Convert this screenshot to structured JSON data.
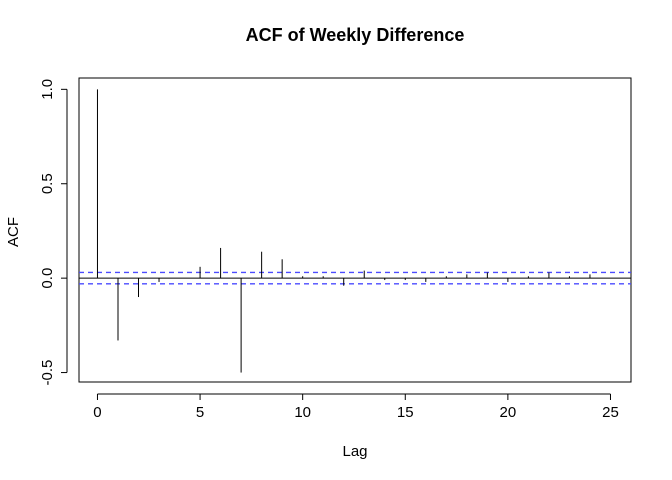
{
  "chart_data": {
    "type": "bar",
    "subtype": "acf-stem",
    "title": "ACF of Weekly Difference",
    "xlabel": "Lag",
    "ylabel": "ACF",
    "xlim": [
      -0.9,
      26.0
    ],
    "ylim": [
      -0.55,
      1.06
    ],
    "xticks": [
      0,
      5,
      10,
      15,
      20,
      25
    ],
    "yticks": [
      -0.5,
      0.0,
      0.5,
      1.0
    ],
    "xtick_labels": [
      "0",
      "5",
      "10",
      "15",
      "20",
      "25"
    ],
    "ytick_labels": [
      "-0.5",
      "0.0",
      "0.5",
      "1.0"
    ],
    "grid": false,
    "legend": "none",
    "confidence_bound": 0.03,
    "lags": [
      0,
      1,
      2,
      3,
      4,
      5,
      6,
      7,
      8,
      9,
      10,
      11,
      12,
      13,
      14,
      15,
      16,
      17,
      18,
      19,
      20,
      21,
      22,
      23,
      24,
      25
    ],
    "values": [
      1.0,
      -0.33,
      -0.1,
      -0.02,
      0.0,
      0.06,
      0.16,
      -0.5,
      0.14,
      0.1,
      0.01,
      0.01,
      -0.04,
      0.04,
      -0.01,
      -0.01,
      -0.02,
      0.01,
      0.02,
      0.03,
      -0.02,
      0.01,
      0.03,
      0.01,
      0.02,
      0.0
    ],
    "colors": {
      "stem": "#000000",
      "zero_line": "#000000",
      "confidence": "#4b4bff"
    }
  }
}
